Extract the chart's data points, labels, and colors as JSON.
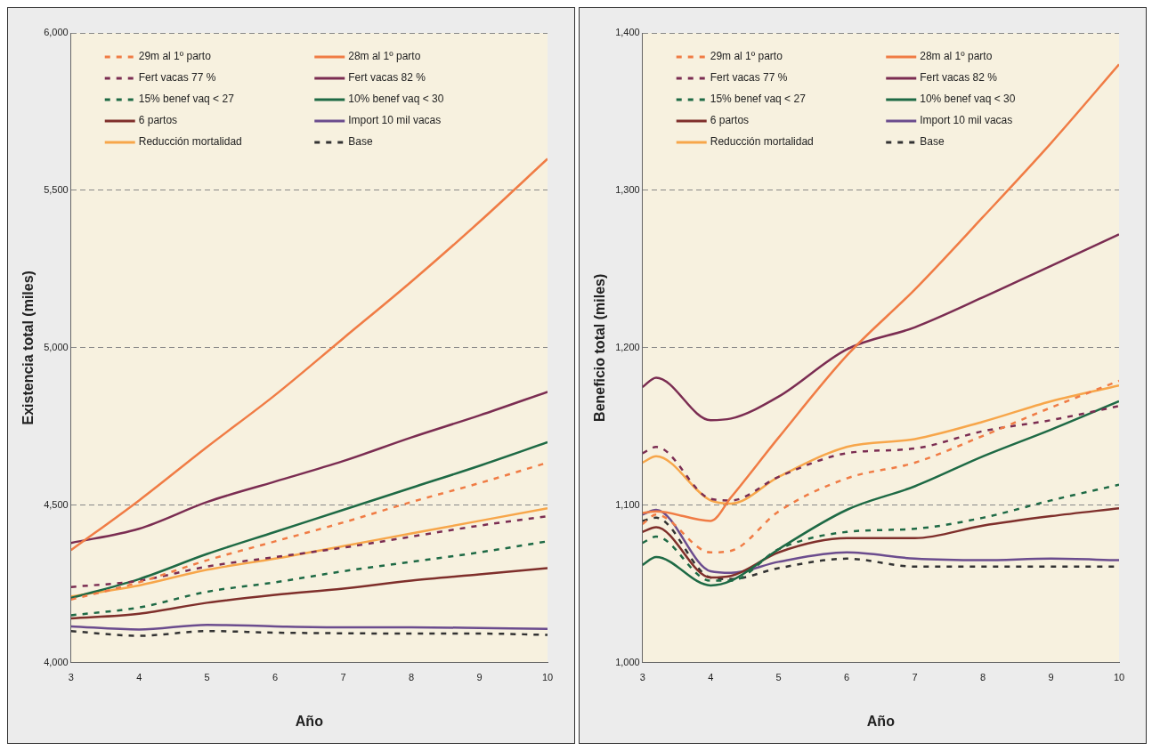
{
  "chart_data": [
    {
      "type": "line",
      "xlabel": "Año",
      "ylabel": "Existencia total (miles)",
      "x": [
        3,
        4,
        5,
        6,
        7,
        8,
        9,
        10
      ],
      "xlim": [
        3,
        10
      ],
      "xticks": [
        3,
        4,
        5,
        6,
        7,
        8,
        9,
        10
      ],
      "ylim": [
        4000,
        6000
      ],
      "yticks": [
        {
          "value": 4000,
          "label": "4,000"
        },
        {
          "value": 4500,
          "label": "4,500"
        },
        {
          "value": 5000,
          "label": "5,000"
        },
        {
          "value": 5500,
          "label": "5,500"
        },
        {
          "value": 6000,
          "label": "6,000"
        }
      ],
      "grid": "y",
      "legend": "top left",
      "marker": "none",
      "series": [
        {
          "name": "29m al 1º parto",
          "color": "#f07c45",
          "line_style": "dashed",
          "values": [
            4200,
            4255,
            4325,
            4385,
            4445,
            4510,
            4570,
            4635
          ]
        },
        {
          "name": "28m al 1º parto",
          "color": "#f07c45",
          "line_style": "solid",
          "values": [
            4357,
            4515,
            4685,
            4850,
            5030,
            5210,
            5400,
            5600
          ]
        },
        {
          "name": "Fert vacas 77 %",
          "color": "#7b2d52",
          "line_style": "dashed",
          "values": [
            4240,
            4260,
            4305,
            4335,
            4365,
            4400,
            4435,
            4465
          ]
        },
        {
          "name": "Fert vacas 82 %",
          "color": "#7b2d52",
          "line_style": "solid",
          "values": [
            4380,
            4425,
            4510,
            4575,
            4640,
            4715,
            4785,
            4860
          ]
        },
        {
          "name": "15% benef vaq < 27",
          "color": "#1e6a45",
          "line_style": "dashed",
          "values": [
            4150,
            4175,
            4225,
            4255,
            4290,
            4320,
            4350,
            4385
          ]
        },
        {
          "name": "10% benef vaq < 30",
          "color": "#1e6a45",
          "line_style": "solid",
          "values": [
            4205,
            4265,
            4345,
            4415,
            4485,
            4555,
            4625,
            4700
          ]
        },
        {
          "name": "6 partos",
          "color": "#7f2f2b",
          "line_style": "solid",
          "values": [
            4140,
            4155,
            4190,
            4215,
            4235,
            4260,
            4280,
            4300
          ]
        },
        {
          "name": "Import 10 mil vacas",
          "color": "#6b4c8e",
          "line_style": "solid",
          "values": [
            4115,
            4105,
            4120,
            4115,
            4112,
            4112,
            4110,
            4107
          ]
        },
        {
          "name": "Reducción mortalidad",
          "color": "#f7a64a",
          "line_style": "solid",
          "values": [
            4210,
            4245,
            4295,
            4330,
            4370,
            4410,
            4450,
            4490
          ]
        },
        {
          "name": "Base",
          "color": "#333333",
          "line_style": "dashed",
          "values": [
            4100,
            4085,
            4100,
            4095,
            4093,
            4092,
            4092,
            4088
          ]
        }
      ]
    },
    {
      "type": "line",
      "xlabel": "Año",
      "ylabel": "Beneficio total (miles)",
      "x": [
        3,
        3.2,
        4,
        4.3,
        5,
        6,
        7,
        8,
        9,
        10
      ],
      "xlim": [
        3,
        10
      ],
      "xticks": [
        3,
        4,
        5,
        6,
        7,
        8,
        9,
        10
      ],
      "ylim": [
        1000,
        1400
      ],
      "yticks": [
        {
          "value": 1000,
          "label": "1,000"
        },
        {
          "value": 1100,
          "label": "1,100"
        },
        {
          "value": 1200,
          "label": "1,200"
        },
        {
          "value": 1300,
          "label": "1,300"
        },
        {
          "value": 1400,
          "label": "1,400"
        }
      ],
      "grid": "y",
      "legend": "top left",
      "marker": "none",
      "series": [
        {
          "name": "29m al 1º parto",
          "color": "#f07c45",
          "line_style": "dashed",
          "values": [
            1088,
            1094,
            1070,
            1071,
            1096,
            1117,
            1127,
            1144,
            1162,
            1179
          ]
        },
        {
          "name": "28m al 1º parto",
          "color": "#f07c45",
          "line_style": "solid",
          "values": [
            1095,
            1096,
            1090,
            1105,
            1143,
            1195,
            1237,
            1283,
            1330,
            1380
          ]
        },
        {
          "name": "Fert vacas 77 %",
          "color": "#7b2d52",
          "line_style": "dashed",
          "values": [
            1133,
            1137,
            1104,
            1103,
            1118,
            1133,
            1136,
            1147,
            1154,
            1163
          ]
        },
        {
          "name": "Fert vacas 82 %",
          "color": "#7b2d52",
          "line_style": "solid",
          "values": [
            1175,
            1181,
            1154,
            1155,
            1169,
            1199,
            1213,
            1232,
            1252,
            1272
          ]
        },
        {
          "name": "15% benef vaq < 27",
          "color": "#1e6a45",
          "line_style": "dashed",
          "values": [
            1076,
            1080,
            1052,
            1052,
            1072,
            1083,
            1085,
            1092,
            1103,
            1113
          ]
        },
        {
          "name": "10% benef vaq < 30",
          "color": "#1e6a45",
          "line_style": "solid",
          "values": [
            1062,
            1067,
            1049,
            1052,
            1072,
            1097,
            1112,
            1131,
            1148,
            1166
          ]
        },
        {
          "name": "6 partos",
          "color": "#7f2f2b",
          "line_style": "solid",
          "values": [
            1083,
            1086,
            1054,
            1055,
            1070,
            1079,
            1079,
            1087,
            1093,
            1098
          ]
        },
        {
          "name": "Import 10 mil vacas",
          "color": "#6b4c8e",
          "line_style": "solid",
          "values": [
            1094,
            1097,
            1058,
            1057,
            1064,
            1070,
            1066,
            1065,
            1066,
            1065
          ]
        },
        {
          "name": "Reducción mortalidad",
          "color": "#f7a64a",
          "line_style": "solid",
          "values": [
            1127,
            1131,
            1103,
            1101,
            1118,
            1137,
            1142,
            1153,
            1166,
            1176
          ]
        },
        {
          "name": "Base",
          "color": "#333333",
          "line_style": "dashed",
          "values": [
            1090,
            1092,
            1054,
            1053,
            1060,
            1066,
            1061,
            1061,
            1061,
            1061
          ]
        }
      ]
    }
  ]
}
